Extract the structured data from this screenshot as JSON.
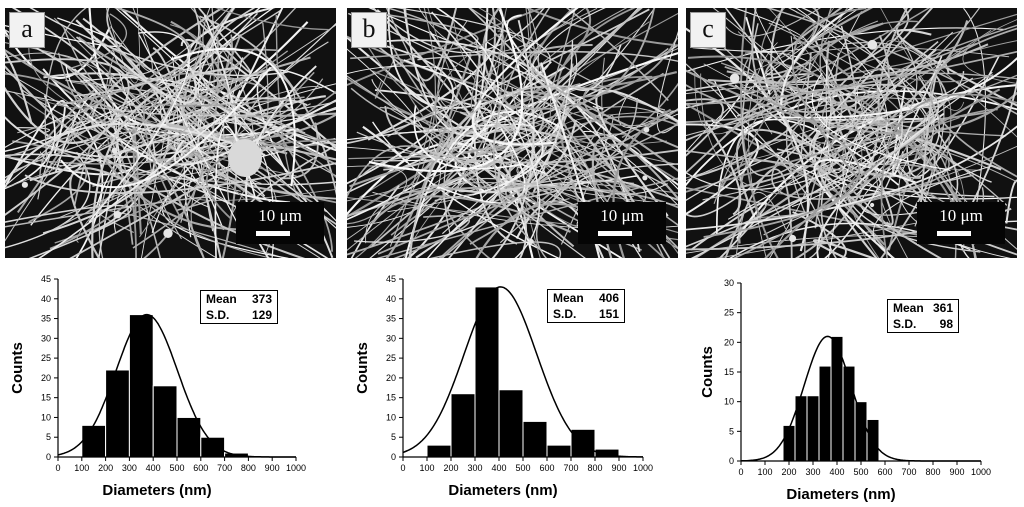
{
  "panels": [
    {
      "label": "a",
      "scale_text": "10  μm"
    },
    {
      "label": "b",
      "scale_text": "10  μm"
    },
    {
      "label": "c",
      "scale_text": "10  μm"
    }
  ],
  "stats": [
    {
      "mean_label": "Mean",
      "mean": "373",
      "sd_label": "S.D.",
      "sd": "129"
    },
    {
      "mean_label": "Mean",
      "mean": "406",
      "sd_label": "S.D.",
      "sd": "151"
    },
    {
      "mean_label": "Mean",
      "mean": "361",
      "sd_label": "S.D.",
      "sd": "98"
    }
  ],
  "chart_data": [
    {
      "type": "bar",
      "xlabel": "Diameters (nm)",
      "ylabel": "Counts",
      "xlim": [
        0,
        1000
      ],
      "ylim": [
        0,
        45
      ],
      "xticks": [
        0,
        100,
        200,
        300,
        400,
        500,
        600,
        700,
        800,
        900,
        1000
      ],
      "yticks": [
        0,
        5,
        10,
        15,
        20,
        25,
        30,
        35,
        40,
        45
      ],
      "bin_edges": [
        100,
        200,
        300,
        400,
        500,
        600,
        700,
        800
      ],
      "values": [
        8,
        22,
        36,
        18,
        10,
        5,
        1
      ],
      "fit": {
        "type": "gaussian",
        "mean": 373,
        "sd": 129,
        "peak": 36
      },
      "grid": false
    },
    {
      "type": "bar",
      "xlabel": "Diameters (nm)",
      "ylabel": "Counts",
      "xlim": [
        0,
        1000
      ],
      "ylim": [
        0,
        45
      ],
      "xticks": [
        0,
        100,
        200,
        300,
        400,
        500,
        600,
        700,
        800,
        900,
        1000
      ],
      "yticks": [
        0,
        5,
        10,
        15,
        20,
        25,
        30,
        35,
        40,
        45
      ],
      "bin_edges": [
        100,
        200,
        300,
        400,
        500,
        600,
        700,
        800,
        900
      ],
      "values": [
        3,
        16,
        43,
        17,
        9,
        3,
        7,
        2
      ],
      "fit": {
        "type": "gaussian",
        "mean": 406,
        "sd": 151,
        "peak": 43
      },
      "grid": false
    },
    {
      "type": "bar",
      "xlabel": "Diameters (nm)",
      "ylabel": "Counts",
      "xlim": [
        0,
        1000
      ],
      "ylim": [
        0,
        30
      ],
      "xticks": [
        0,
        100,
        200,
        300,
        400,
        500,
        600,
        700,
        800,
        900,
        1000
      ],
      "yticks": [
        0,
        5,
        10,
        15,
        20,
        25,
        30
      ],
      "bin_edges": [
        175,
        225,
        275,
        325,
        375,
        425,
        475,
        525,
        575
      ],
      "values": [
        6,
        11,
        11,
        16,
        21,
        16,
        10,
        7
      ],
      "fit": {
        "type": "gaussian",
        "mean": 361,
        "sd": 98,
        "peak": 21
      },
      "grid": false
    }
  ]
}
